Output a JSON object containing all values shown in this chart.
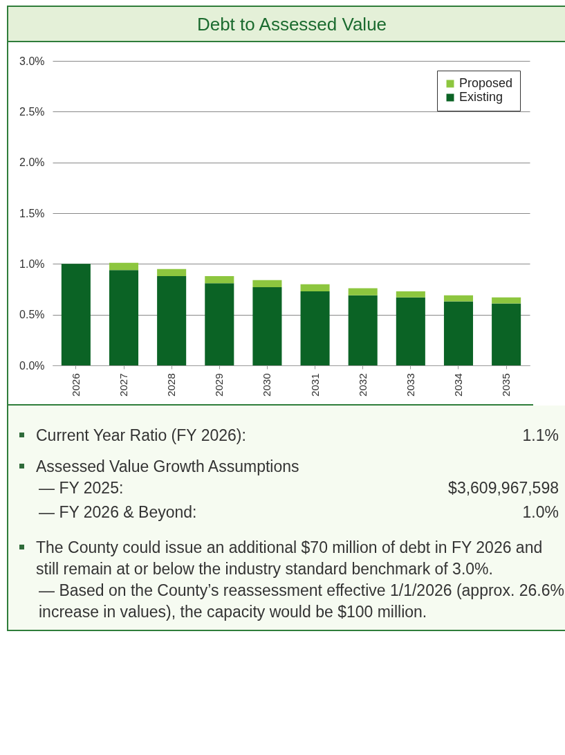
{
  "chart_data": {
    "type": "bar",
    "title": "Debt to Assessed Value",
    "categories": [
      "2026",
      "2027",
      "2028",
      "2029",
      "2030",
      "2031",
      "2032",
      "2033",
      "2034",
      "2035"
    ],
    "series": [
      {
        "name": "Existing",
        "color": "#0b6325",
        "values": [
          1.0,
          0.94,
          0.88,
          0.81,
          0.77,
          0.73,
          0.69,
          0.67,
          0.63,
          0.61
        ]
      },
      {
        "name": "Proposed",
        "color": "#8dc63f",
        "values": [
          0,
          0.07,
          0.07,
          0.07,
          0.07,
          0.07,
          0.07,
          0.06,
          0.06,
          0.06
        ]
      }
    ],
    "stacked": true,
    "ylim": [
      0,
      3
    ],
    "yticks": [
      {
        "value": 0,
        "label": "0.0%"
      },
      {
        "value": 0.5,
        "label": "0.5%"
      },
      {
        "value": 1,
        "label": "1.0%"
      },
      {
        "value": 1.5,
        "label": "1.5%"
      },
      {
        "value": 2,
        "label": "2.0%"
      },
      {
        "value": 2.5,
        "label": "2.5%"
      },
      {
        "value": 3,
        "label": "3.0%"
      }
    ],
    "grid": "y",
    "legend": "top right",
    "annotations": [
      "Current Year Ratio (FY 2026):",
      "1.1%",
      "Assessed Value Growth Assumptions",
      "— FY 2025:",
      "$3,609,967,598",
      "— FY 2026 & Beyond:",
      "1.0%",
      "The County could issue an additional $70 million of debt in FY 2026 and still remain at or below the industry standard benchmark of 3.0%.",
      "— Based on the County’s reassessment effective 1/1/2026 (approx. 26.6% increase in values), the capacity would be $100 million."
    ]
  }
}
